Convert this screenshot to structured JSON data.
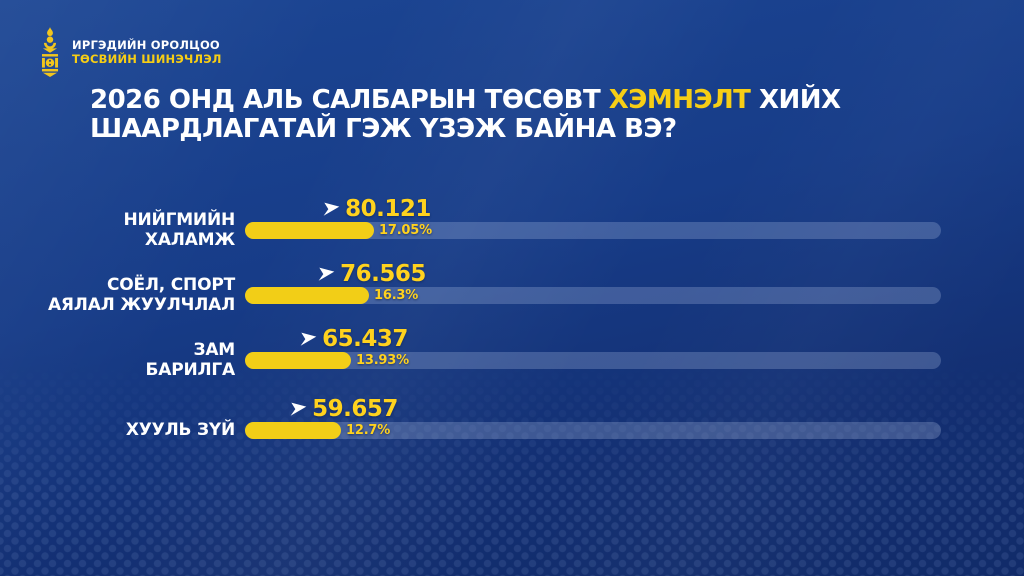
{
  "brand": {
    "line1": "ИРГЭДИЙН ОРОЛЦОО",
    "line2": "ТӨСВИЙН ШИНЭЧЛЭЛ"
  },
  "title": {
    "line1_pre": "2026 ОНД АЛЬ САЛБАРЫН ТӨСӨВТ ",
    "line1_highlight": "ХЭМНЭЛТ",
    "line1_post": " ХИЙХ",
    "line2": "ШААРДЛАГАТАЙ ГЭЖ ҮЗЭЖ БАЙНА ВЭ?"
  },
  "colors": {
    "background_top": "#1c4694",
    "background_bottom": "#112b69",
    "accent_yellow": "#F2CE17",
    "value_yellow": "#FFD21E",
    "track_blue": "#4b5f97",
    "text_white": "#ffffff"
  },
  "chart_data": {
    "type": "bar",
    "orientation": "horizontal",
    "title": "2026 ОНД АЛЬ САЛБАРЫН ТӨСӨВТ ХЭМНЭЛТ ХИЙХ ШААРДЛАГАТАЙ ГЭЖ ҮЗЭЖ БАЙНА ВЭ?",
    "highlighted_word": "ХЭМНЭЛТ",
    "categories": [
      "НИЙГМИЙН ХАЛАМЖ",
      "СОЁЛ, СПОРТ АЯЛАЛ ЖУУЛЧЛАЛ",
      "ЗАМ БАРИЛГА",
      "ХУУЛЬ ЗҮЙ"
    ],
    "values": [
      80121,
      76565,
      65437,
      59657
    ],
    "value_labels": [
      "80.121",
      "76.565",
      "65.437",
      "59.657"
    ],
    "percentages": [
      17.05,
      16.3,
      13.93,
      12.7
    ],
    "percent_labels": [
      "17.05%",
      "16.3%",
      "13.93%",
      "12.7%"
    ],
    "grid": false,
    "legend": false,
    "rows": [
      {
        "label_lines": [
          "НИЙГМИЙН",
          "ХАЛАМЖ"
        ],
        "value_label": "80.121",
        "percent_label": "17.05%",
        "pct": 17.05
      },
      {
        "label_lines": [
          "СОЁЛ, СПОРТ",
          "АЯЛАЛ ЖУУЛЧЛАЛ"
        ],
        "value_label": "76.565",
        "percent_label": "16.3%",
        "pct": 16.3
      },
      {
        "label_lines": [
          "ЗАМ",
          "БАРИЛГА"
        ],
        "value_label": "65.437",
        "percent_label": "13.93%",
        "pct": 13.93
      },
      {
        "label_lines": [
          "ХУУЛЬ ЗҮЙ"
        ],
        "value_label": "59.657",
        "percent_label": "12.7%",
        "pct": 12.7
      }
    ]
  }
}
